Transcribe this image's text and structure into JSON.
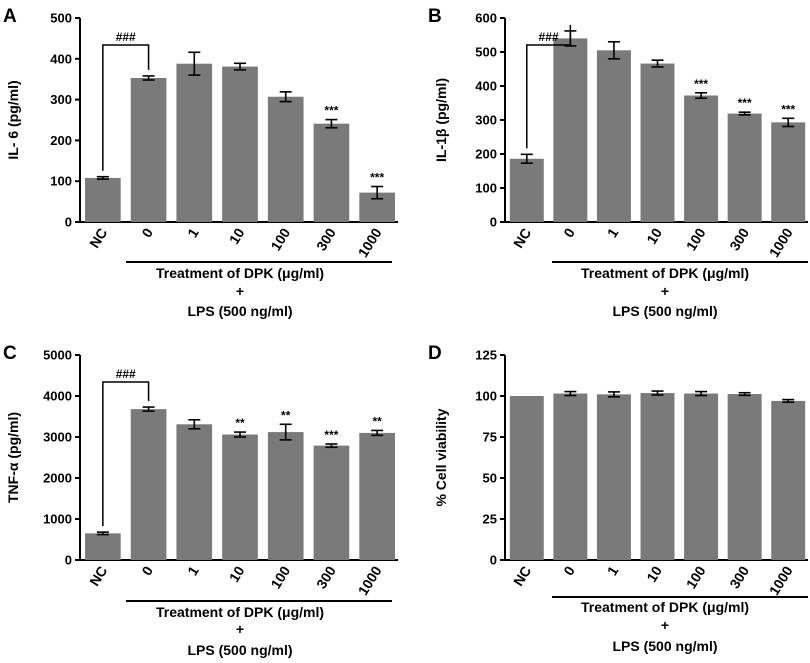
{
  "figure_panels": [
    {
      "label": "A"
    },
    {
      "label": "B"
    },
    {
      "label": "C"
    },
    {
      "label": "D"
    }
  ],
  "chart_data": [
    {
      "type": "bar",
      "panel": "A",
      "ylabel": "IL- 6 (pg/ml)",
      "ylim": [
        0,
        500
      ],
      "yticks": [
        0,
        100,
        200,
        300,
        400,
        500
      ],
      "categories": [
        "NC",
        "0",
        "1",
        "10",
        "100",
        "300",
        "1000"
      ],
      "values": [
        108,
        353,
        388,
        381,
        307,
        241,
        72
      ],
      "errors": [
        3,
        5,
        28,
        8,
        12,
        10,
        15
      ],
      "significance": [
        "",
        "",
        "",
        "",
        "",
        "***",
        "***"
      ],
      "comparison_label": "###",
      "treatment_label": "Treatment of DPK (μg/ml)",
      "plus_sign": "+",
      "lps_label": "LPS (500 ng/ml)"
    },
    {
      "type": "bar",
      "panel": "B",
      "ylabel": "IL-1β (pg/ml)",
      "ylim": [
        0,
        600
      ],
      "yticks": [
        0,
        100,
        200,
        300,
        400,
        500,
        600
      ],
      "categories": [
        "NC",
        "0",
        "1",
        "10",
        "100",
        "300",
        "1000"
      ],
      "values": [
        186,
        540,
        505,
        466,
        372,
        319,
        293
      ],
      "errors": [
        13,
        22,
        25,
        10,
        8,
        4,
        12
      ],
      "significance": [
        "",
        "",
        "",
        "",
        "***",
        "***",
        "***"
      ],
      "comparison_label": "###",
      "treatment_label": "Treatment of DPK (μg/ml)",
      "plus_sign": "+",
      "lps_label": "LPS (500 ng/ml)"
    },
    {
      "type": "bar",
      "panel": "C",
      "ylabel": "TNF-α (pg/ml)",
      "ylim": [
        0,
        5000
      ],
      "yticks": [
        0,
        1000,
        2000,
        3000,
        4000,
        5000
      ],
      "categories": [
        "NC",
        "0",
        "1",
        "10",
        "100",
        "300",
        "1000"
      ],
      "values": [
        650,
        3680,
        3310,
        3060,
        3120,
        2790,
        3100
      ],
      "errors": [
        30,
        50,
        110,
        60,
        190,
        40,
        60
      ],
      "significance": [
        "",
        "",
        "",
        "**",
        "**",
        "***",
        "**"
      ],
      "comparison_label": "###",
      "treatment_label": "Treatment of DPK (μg/ml)",
      "plus_sign": "+",
      "lps_label": "LPS (500 ng/ml)"
    },
    {
      "type": "bar",
      "panel": "D",
      "ylabel": "% Cell viability",
      "ylim": [
        0,
        125
      ],
      "yticks": [
        0,
        25,
        50,
        75,
        100,
        125
      ],
      "categories": [
        "NC",
        "0",
        "1",
        "10",
        "100",
        "300",
        "1000"
      ],
      "values": [
        100,
        101.5,
        101,
        101.8,
        101.5,
        101.2,
        97
      ],
      "errors": [
        0,
        1.2,
        1.5,
        1.2,
        1.2,
        0.8,
        0.8
      ],
      "significance": [
        "",
        "",
        "",
        "",
        "",
        "",
        ""
      ],
      "comparison_label": "",
      "treatment_label": "Treatment of DPK (μg/ml)",
      "plus_sign": "+",
      "lps_label": "LPS (500 ng/ml)"
    }
  ]
}
